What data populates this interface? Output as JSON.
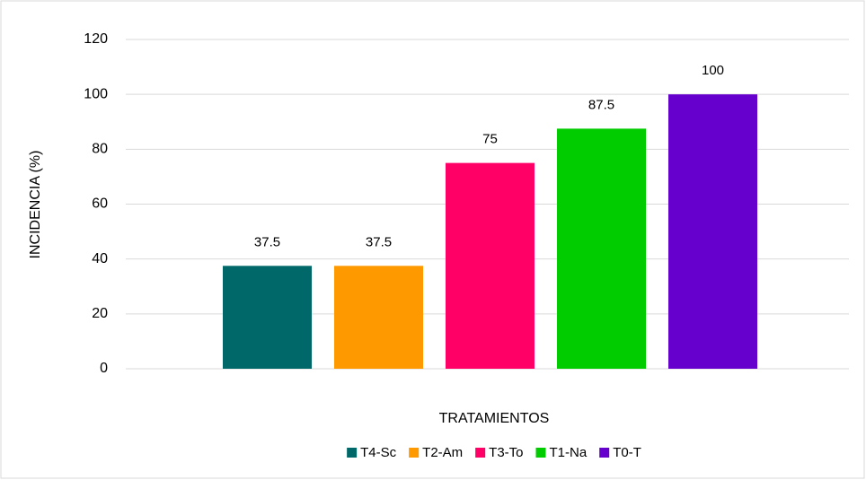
{
  "chart_data": {
    "type": "bar",
    "xlabel": "TRATAMIENTOS",
    "ylabel": "INCIDENCIA (%)",
    "categories": [
      null
    ],
    "series": [
      {
        "name": "T4-Sc",
        "color": "#006868",
        "values": [
          37.5
        ]
      },
      {
        "name": "T2-Am",
        "color": "#ff9900",
        "values": [
          37.5
        ]
      },
      {
        "name": "T3-To",
        "color": "#ff0066",
        "values": [
          75
        ]
      },
      {
        "name": "T1-Na",
        "color": "#00cc00",
        "values": [
          87.5
        ]
      },
      {
        "name": "T0-T",
        "color": "#6600cc",
        "values": [
          100
        ]
      }
    ],
    "ylim": [
      0,
      120
    ],
    "yticks": [
      0,
      20,
      40,
      60,
      80,
      100,
      120
    ],
    "grid": true,
    "legend": "bottom",
    "data_labels": true
  }
}
